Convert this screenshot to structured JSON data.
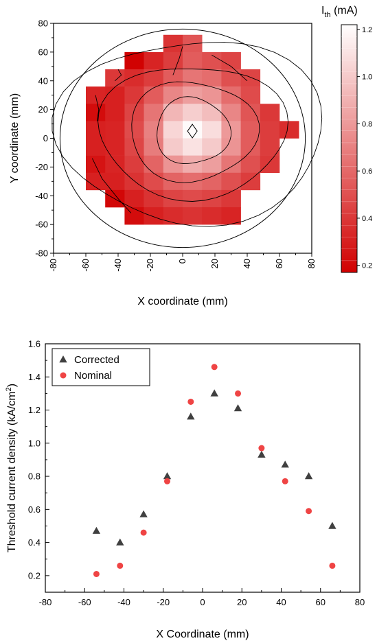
{
  "chart_data": [
    {
      "type": "heatmap",
      "xlabel": "X coordinate (mm)",
      "ylabel": "Y coordinate (mm)",
      "xlim": [
        -80,
        80
      ],
      "ylim": [
        -80,
        80
      ],
      "xticks": [
        -80,
        -60,
        -40,
        -20,
        0,
        20,
        40,
        60,
        80
      ],
      "yticks": [
        -80,
        -60,
        -40,
        -20,
        0,
        20,
        40,
        60,
        80
      ],
      "colorbar": {
        "title_main": "I",
        "title_sub": "th",
        "title_unit": " (mA)",
        "min": 0.17,
        "max": 1.22,
        "ticks": [
          0.2,
          0.4,
          0.6,
          0.8,
          1.0,
          1.2
        ],
        "tick_labels": [
          "0.2",
          "0.4",
          "0.6",
          "0.8",
          "1.0",
          "1.2"
        ],
        "colors": [
          "#d10000",
          "#ffffff"
        ]
      },
      "cell_size_mm": 12,
      "cell_centers_x": [
        -54,
        -42,
        -30,
        -18,
        -6,
        6,
        18,
        30,
        42,
        54,
        66
      ],
      "cell_centers_y": [
        66,
        54,
        42,
        30,
        18,
        6,
        -6,
        -18,
        -30,
        -42,
        -54
      ],
      "grid": [
        [
          null,
          null,
          null,
          null,
          0.38,
          0.52,
          null,
          null,
          null,
          null,
          null
        ],
        [
          null,
          null,
          0.18,
          0.32,
          0.42,
          0.55,
          0.5,
          0.45,
          null,
          null,
          null
        ],
        [
          null,
          0.4,
          0.35,
          0.42,
          0.55,
          0.65,
          0.62,
          0.5,
          0.45,
          null,
          null
        ],
        [
          0.32,
          0.3,
          0.4,
          0.55,
          0.72,
          0.82,
          0.78,
          0.62,
          0.48,
          null,
          null
        ],
        [
          0.22,
          0.3,
          0.45,
          0.65,
          0.92,
          1.02,
          0.95,
          0.72,
          0.52,
          0.4,
          null
        ],
        [
          0.3,
          0.32,
          0.48,
          0.7,
          1.05,
          1.2,
          1.08,
          0.8,
          0.55,
          0.42,
          0.35
        ],
        [
          0.3,
          0.32,
          0.46,
          0.68,
          1.0,
          1.1,
          1.0,
          0.78,
          0.55,
          0.42,
          null
        ],
        [
          0.25,
          0.32,
          0.42,
          0.58,
          0.78,
          0.88,
          0.82,
          0.65,
          0.5,
          0.4,
          null
        ],
        [
          0.3,
          0.3,
          0.38,
          0.48,
          0.58,
          0.62,
          0.58,
          0.5,
          0.42,
          null,
          null
        ],
        [
          null,
          0.2,
          0.3,
          0.38,
          0.45,
          0.48,
          0.45,
          0.4,
          null,
          null,
          null
        ],
        [
          null,
          null,
          0.22,
          0.3,
          0.35,
          0.38,
          0.35,
          0.32,
          null,
          null,
          null
        ]
      ],
      "wafer_radius_mm": 76
    },
    {
      "type": "scatter",
      "xlabel": "X Coordinate (mm)",
      "ylabel_main": "Threshold current density (kA/cm",
      "ylabel_sup": "2",
      "ylabel_end": ")",
      "xlim": [
        -80,
        80
      ],
      "ylim": [
        0.1,
        1.6
      ],
      "xticks": [
        -80,
        -60,
        -40,
        -20,
        0,
        20,
        40,
        60,
        80
      ],
      "yticks": [
        0.2,
        0.4,
        0.6,
        0.8,
        1.0,
        1.2,
        1.4,
        1.6
      ],
      "ytick_labels": [
        "0.2",
        "0.4",
        "0.6",
        "0.8",
        "1.0",
        "1.2",
        "1.4",
        "1.6"
      ],
      "legend_position": "top-left",
      "series": [
        {
          "name": "Corrected",
          "marker": "triangle",
          "color": "#404040",
          "x": [
            -54,
            -42,
            -30,
            -18,
            -6,
            6,
            18,
            30,
            42,
            54,
            66
          ],
          "y": [
            0.47,
            0.4,
            0.57,
            0.8,
            1.16,
            1.3,
            1.21,
            0.93,
            0.87,
            0.8,
            0.5
          ]
        },
        {
          "name": "Nominal",
          "marker": "circle",
          "color": "#ef4444",
          "x": [
            -54,
            -42,
            -30,
            -18,
            -6,
            6,
            18,
            30,
            42,
            54,
            66
          ],
          "y": [
            0.21,
            0.26,
            0.46,
            0.77,
            1.25,
            1.46,
            1.3,
            0.97,
            0.77,
            0.59,
            0.26
          ]
        }
      ]
    }
  ]
}
